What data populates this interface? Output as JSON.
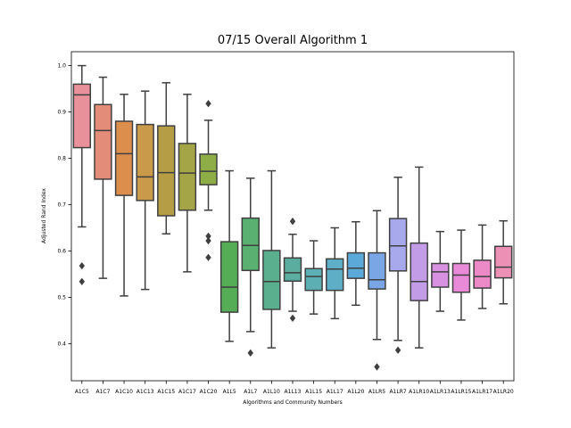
{
  "chart_data": {
    "type": "box",
    "title": "07/15 Overall Algorithm 1",
    "xlabel": "Algorithms and Community Numbers",
    "ylabel": "Adjusted Rand Index",
    "ylim": [
      0.32,
      1.03
    ],
    "yticks": [
      0.4,
      0.5,
      0.6,
      0.7,
      0.8,
      0.9,
      1.0
    ],
    "grid": false,
    "categories": [
      "A1C5",
      "A1C7",
      "A1C10",
      "A1C13",
      "A1C15",
      "A1C17",
      "A1C20",
      "A1L5",
      "A1L7",
      "A1L10",
      "A1L13",
      "A1L15",
      "A1L17",
      "A1L20",
      "A1LR5",
      "A1LR7",
      "A1LR10",
      "A1LR13",
      "A1LR15",
      "A1LR17",
      "A1LR20"
    ],
    "colors": [
      "#e8919a",
      "#e38c79",
      "#dc8f4d",
      "#c99a4a",
      "#b59d45",
      "#a3a546",
      "#8fad47",
      "#55ad55",
      "#59b070",
      "#5ab08e",
      "#5aad9f",
      "#5cafb3",
      "#5daec6",
      "#5ba9d8",
      "#7aa6e6",
      "#a8a8ec",
      "#c39ce8",
      "#d891e0",
      "#e98ad9",
      "#ec8ac8",
      "#ec91b5"
    ],
    "boxes": [
      {
        "whislo": 0.652,
        "q1": 0.823,
        "med": 0.937,
        "q3": 0.96,
        "whishi": 1.0,
        "fliers": [
          0.568,
          0.534
        ]
      },
      {
        "whislo": 0.541,
        "q1": 0.755,
        "med": 0.86,
        "q3": 0.916,
        "whishi": 0.975,
        "fliers": []
      },
      {
        "whislo": 0.503,
        "q1": 0.72,
        "med": 0.81,
        "q3": 0.88,
        "whishi": 0.938,
        "fliers": []
      },
      {
        "whislo": 0.517,
        "q1": 0.709,
        "med": 0.76,
        "q3": 0.873,
        "whishi": 0.945,
        "fliers": []
      },
      {
        "whislo": 0.637,
        "q1": 0.676,
        "med": 0.769,
        "q3": 0.87,
        "whishi": 0.963,
        "fliers": []
      },
      {
        "whislo": 0.555,
        "q1": 0.688,
        "med": 0.768,
        "q3": 0.832,
        "whishi": 0.938,
        "fliers": []
      },
      {
        "whislo": 0.688,
        "q1": 0.743,
        "med": 0.772,
        "q3": 0.809,
        "whishi": 0.882,
        "fliers": [
          0.918,
          0.632,
          0.622,
          0.586
        ]
      },
      {
        "whislo": 0.405,
        "q1": 0.468,
        "med": 0.522,
        "q3": 0.62,
        "whishi": 0.773,
        "fliers": []
      },
      {
        "whislo": 0.426,
        "q1": 0.558,
        "med": 0.612,
        "q3": 0.671,
        "whishi": 0.757,
        "fliers": [
          0.38
        ]
      },
      {
        "whislo": 0.391,
        "q1": 0.474,
        "med": 0.534,
        "q3": 0.601,
        "whishi": 0.773,
        "fliers": []
      },
      {
        "whislo": 0.47,
        "q1": 0.535,
        "med": 0.553,
        "q3": 0.585,
        "whishi": 0.636,
        "fliers": [
          0.664,
          0.455
        ]
      },
      {
        "whislo": 0.464,
        "q1": 0.515,
        "med": 0.545,
        "q3": 0.562,
        "whishi": 0.622,
        "fliers": []
      },
      {
        "whislo": 0.454,
        "q1": 0.515,
        "med": 0.561,
        "q3": 0.583,
        "whishi": 0.65,
        "fliers": []
      },
      {
        "whislo": 0.483,
        "q1": 0.541,
        "med": 0.563,
        "q3": 0.596,
        "whishi": 0.663,
        "fliers": []
      },
      {
        "whislo": 0.409,
        "q1": 0.518,
        "med": 0.538,
        "q3": 0.596,
        "whishi": 0.687,
        "fliers": [
          0.35
        ]
      },
      {
        "whislo": 0.407,
        "q1": 0.557,
        "med": 0.611,
        "q3": 0.67,
        "whishi": 0.759,
        "fliers": [
          0.386
        ]
      },
      {
        "whislo": 0.391,
        "q1": 0.493,
        "med": 0.534,
        "q3": 0.617,
        "whishi": 0.781,
        "fliers": []
      },
      {
        "whislo": 0.47,
        "q1": 0.522,
        "med": 0.555,
        "q3": 0.573,
        "whishi": 0.642,
        "fliers": []
      },
      {
        "whislo": 0.451,
        "q1": 0.511,
        "med": 0.548,
        "q3": 0.573,
        "whishi": 0.645,
        "fliers": []
      },
      {
        "whislo": 0.476,
        "q1": 0.52,
        "med": 0.545,
        "q3": 0.58,
        "whishi": 0.656,
        "fliers": []
      },
      {
        "whislo": 0.486,
        "q1": 0.542,
        "med": 0.565,
        "q3": 0.61,
        "whishi": 0.665,
        "fliers": []
      }
    ]
  }
}
